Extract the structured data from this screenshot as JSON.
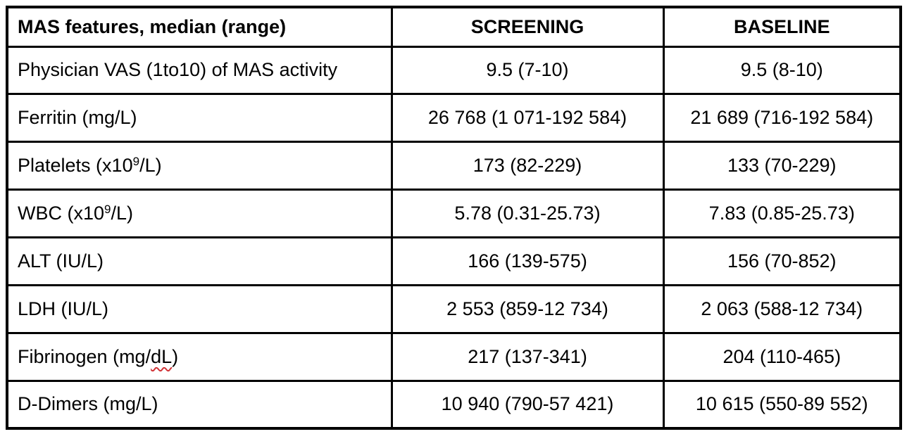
{
  "table": {
    "headers": [
      {
        "label": "MAS features, median (range)"
      },
      {
        "label": "SCREENING"
      },
      {
        "label": "BASELINE"
      }
    ],
    "rows": [
      {
        "label_pre": "Physician VAS (1to10) of MAS activity",
        "label_sup": "",
        "label_mid": "",
        "label_spell": "",
        "label_post": "",
        "screening": "9.5 (7-10)",
        "baseline": "9.5 (8-10)"
      },
      {
        "label_pre": "Ferritin (mg/L)",
        "label_sup": "",
        "label_mid": "",
        "label_spell": "",
        "label_post": "",
        "screening": "26 768 (1 071-192 584)",
        "baseline": "21 689 (716-192 584)"
      },
      {
        "label_pre": "Platelets (x10",
        "label_sup": "9",
        "label_mid": "/L)",
        "label_spell": "",
        "label_post": "",
        "screening": "173 (82-229)",
        "baseline": "133 (70-229)"
      },
      {
        "label_pre": "WBC (x10",
        "label_sup": "9",
        "label_mid": "/L)",
        "label_spell": "",
        "label_post": "",
        "screening": "5.78 (0.31-25.73)",
        "baseline": "7.83 (0.85-25.73)"
      },
      {
        "label_pre": "ALT (IU/L)",
        "label_sup": "",
        "label_mid": "",
        "label_spell": "",
        "label_post": "",
        "screening": "166 (139-575)",
        "baseline": "156 (70-852)"
      },
      {
        "label_pre": "LDH (IU/L)",
        "label_sup": "",
        "label_mid": "",
        "label_spell": "",
        "label_post": "",
        "screening": "2 553 (859-12 734)",
        "baseline": "2 063 (588-12 734)"
      },
      {
        "label_pre": "Fibrinogen (mg/",
        "label_sup": "",
        "label_mid": "",
        "label_spell": "dL",
        "label_post": ")",
        "screening": "217 (137-341)",
        "baseline": "204 (110-465)"
      },
      {
        "label_pre": "D-Dimers (mg/L)",
        "label_sup": "",
        "label_mid": "",
        "label_spell": "",
        "label_post": "",
        "screening": "10 940 (790-57 421)",
        "baseline": "10 615 (550-89 552)"
      }
    ],
    "colors": {
      "border": "#000000",
      "text": "#000000",
      "spellcheck_underline": "#d13438",
      "background": "#ffffff"
    }
  }
}
